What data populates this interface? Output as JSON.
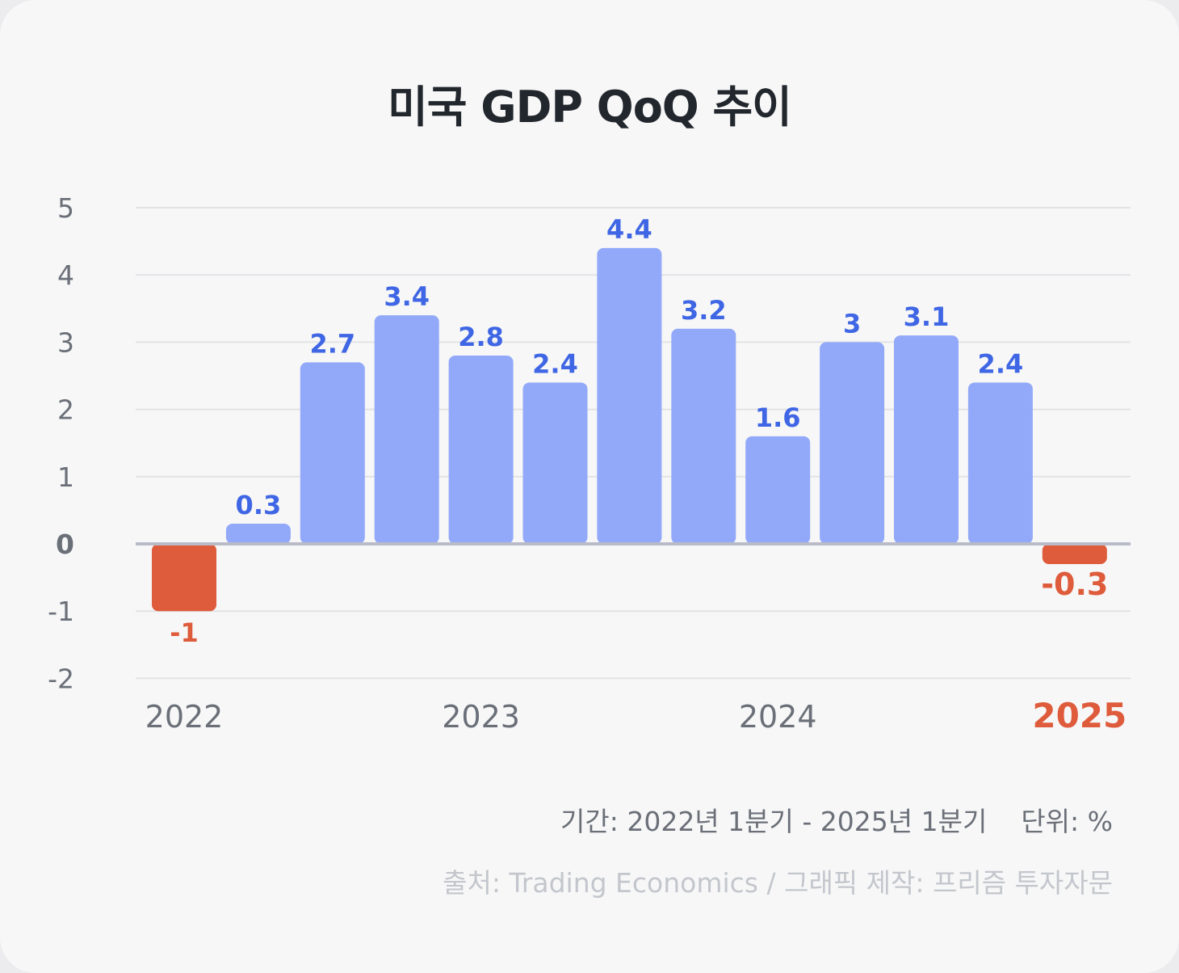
{
  "title": "미국 GDP QoQ 추이",
  "footer": {
    "period": "기간: 2022년 1분기 - 2025년 1분기",
    "unit": "단위: %",
    "source": "출처: Trading Economics / 그래픽 제작: 프리즘 투자자문"
  },
  "colors": {
    "positive_bar": "#92a9f9",
    "positive_label": "#3f66e4",
    "negative": "#de5b3b",
    "axis_text": "#6a6f78",
    "grid": "#e2e3e6",
    "zero_line": "#babbc8"
  },
  "chart_data": {
    "type": "bar",
    "title": "미국 GDP QoQ 추이",
    "values": [
      -1,
      0.3,
      2.7,
      3.4,
      2.8,
      2.4,
      4.4,
      3.2,
      1.6,
      3,
      3.1,
      2.4,
      -0.3
    ],
    "data_labels": [
      "-1",
      "0.3",
      "2.7",
      "3.4",
      "2.8",
      "2.4",
      "4.4",
      "3.2",
      "1.6",
      "3",
      "3.1",
      "2.4",
      "-0.3"
    ],
    "year_labels": [
      {
        "label": "2022",
        "bar_index": 0,
        "highlight": false
      },
      {
        "label": "2023",
        "bar_index": 4,
        "highlight": false
      },
      {
        "label": "2024",
        "bar_index": 8,
        "highlight": false
      },
      {
        "label": "2025",
        "bar_index": 12,
        "highlight": true
      }
    ],
    "y_ticks": [
      5,
      4,
      3,
      2,
      1,
      0,
      -1,
      -2
    ],
    "ylim": [
      -2,
      5
    ],
    "grid": true,
    "xlabel": "",
    "ylabel": ""
  }
}
